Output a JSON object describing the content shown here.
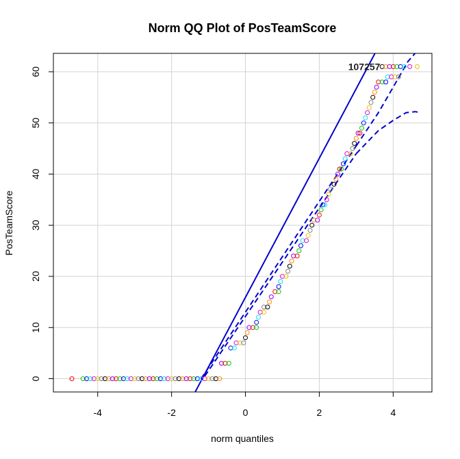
{
  "chart_data": {
    "type": "scatter",
    "title": "Norm QQ Plot of PosTeamScore",
    "xlabel": "norm quantiles",
    "ylabel": "PosTeamScore",
    "xlim": [
      -5.2,
      5.05
    ],
    "ylim": [
      -2.6,
      63.6
    ],
    "x_ticks": [
      -4,
      -2,
      0,
      2,
      4
    ],
    "y_ticks": [
      0,
      10,
      20,
      30,
      40,
      50,
      60
    ],
    "grid": true,
    "point_labels": [
      {
        "text": "107257",
        "x": 3.65,
        "y": 61
      }
    ],
    "reference_line": {
      "slope": 13.6,
      "intercept": 15.9
    },
    "confidence_band": {
      "upper": [
        [
          -0.6,
          7.8
        ],
        [
          0.0,
          15.9
        ],
        [
          1.0,
          29.5
        ],
        [
          2.0,
          43.0
        ],
        [
          3.0,
          56.8
        ],
        [
          3.5,
          64.0
        ],
        [
          4.0,
          71.0
        ],
        [
          4.65,
          81.0
        ]
      ],
      "lower": [
        [
          -0.6,
          7.6
        ],
        [
          0.0,
          15.6
        ],
        [
          1.0,
          29.1
        ],
        [
          2.0,
          42.5
        ],
        [
          3.0,
          55.5
        ],
        [
          3.5,
          61.5
        ],
        [
          4.0,
          64.0
        ],
        [
          4.3,
          65.0
        ],
        [
          4.7,
          66.0
        ]
      ]
    },
    "band_upper_visible": [
      [
        3.0,
        45.5
      ],
      [
        3.6,
        52.0
      ],
      [
        4.0,
        57.0
      ],
      [
        4.4,
        62.0
      ],
      [
        4.7,
        64.5
      ]
    ],
    "band_lower_visible": [
      [
        3.0,
        44.0
      ],
      [
        3.6,
        48.5
      ],
      [
        4.0,
        50.5
      ],
      [
        4.35,
        52.0
      ],
      [
        4.6,
        52.2
      ],
      [
        4.75,
        52.0
      ]
    ],
    "points": [
      {
        "x": -4.7,
        "y": 0
      },
      {
        "x": -4.4,
        "y": 0
      },
      {
        "x": -4.3,
        "y": 0
      },
      {
        "x": -4.2,
        "y": 0
      },
      {
        "x": -4.1,
        "y": 0
      },
      {
        "x": -4.0,
        "y": 0
      },
      {
        "x": -3.9,
        "y": 0
      },
      {
        "x": -3.8,
        "y": 0
      },
      {
        "x": -3.7,
        "y": 0
      },
      {
        "x": -3.6,
        "y": 0
      },
      {
        "x": -3.5,
        "y": 0
      },
      {
        "x": -3.4,
        "y": 0
      },
      {
        "x": -3.3,
        "y": 0
      },
      {
        "x": -3.2,
        "y": 0
      },
      {
        "x": -3.1,
        "y": 0
      },
      {
        "x": -3.0,
        "y": 0
      },
      {
        "x": -2.9,
        "y": 0
      },
      {
        "x": -2.8,
        "y": 0
      },
      {
        "x": -2.7,
        "y": 0
      },
      {
        "x": -2.6,
        "y": 0
      },
      {
        "x": -2.5,
        "y": 0
      },
      {
        "x": -2.4,
        "y": 0
      },
      {
        "x": -2.3,
        "y": 0
      },
      {
        "x": -2.2,
        "y": 0
      },
      {
        "x": -2.1,
        "y": 0
      },
      {
        "x": -2.0,
        "y": 0
      },
      {
        "x": -1.9,
        "y": 0
      },
      {
        "x": -1.8,
        "y": 0
      },
      {
        "x": -1.7,
        "y": 0
      },
      {
        "x": -1.6,
        "y": 0
      },
      {
        "x": -1.5,
        "y": 0
      },
      {
        "x": -1.4,
        "y": 0
      },
      {
        "x": -1.3,
        "y": 0
      },
      {
        "x": -1.2,
        "y": 0
      },
      {
        "x": -1.1,
        "y": 0
      },
      {
        "x": -1.0,
        "y": 0
      },
      {
        "x": -0.9,
        "y": 0
      },
      {
        "x": -0.8,
        "y": 0
      },
      {
        "x": -0.7,
        "y": 0
      },
      {
        "x": -0.65,
        "y": 3
      },
      {
        "x": -0.55,
        "y": 3
      },
      {
        "x": -0.45,
        "y": 3
      },
      {
        "x": -0.4,
        "y": 6
      },
      {
        "x": -0.3,
        "y": 6
      },
      {
        "x": -0.25,
        "y": 7
      },
      {
        "x": -0.15,
        "y": 7
      },
      {
        "x": -0.05,
        "y": 7
      },
      {
        "x": 0.0,
        "y": 8
      },
      {
        "x": 0.05,
        "y": 9
      },
      {
        "x": 0.1,
        "y": 10
      },
      {
        "x": 0.2,
        "y": 10
      },
      {
        "x": 0.3,
        "y": 10
      },
      {
        "x": 0.3,
        "y": 11
      },
      {
        "x": 0.35,
        "y": 12
      },
      {
        "x": 0.4,
        "y": 13
      },
      {
        "x": 0.5,
        "y": 13
      },
      {
        "x": 0.5,
        "y": 14
      },
      {
        "x": 0.6,
        "y": 14
      },
      {
        "x": 0.65,
        "y": 15
      },
      {
        "x": 0.7,
        "y": 16
      },
      {
        "x": 0.8,
        "y": 17
      },
      {
        "x": 0.9,
        "y": 17
      },
      {
        "x": 0.9,
        "y": 18
      },
      {
        "x": 0.95,
        "y": 19
      },
      {
        "x": 1.0,
        "y": 20
      },
      {
        "x": 1.1,
        "y": 20
      },
      {
        "x": 1.15,
        "y": 21
      },
      {
        "x": 1.2,
        "y": 22
      },
      {
        "x": 1.25,
        "y": 23
      },
      {
        "x": 1.3,
        "y": 24
      },
      {
        "x": 1.4,
        "y": 24
      },
      {
        "x": 1.45,
        "y": 25
      },
      {
        "x": 1.5,
        "y": 26
      },
      {
        "x": 1.55,
        "y": 27
      },
      {
        "x": 1.65,
        "y": 27
      },
      {
        "x": 1.7,
        "y": 28
      },
      {
        "x": 1.75,
        "y": 29
      },
      {
        "x": 1.8,
        "y": 30
      },
      {
        "x": 1.85,
        "y": 31
      },
      {
        "x": 1.95,
        "y": 31
      },
      {
        "x": 2.0,
        "y": 32
      },
      {
        "x": 2.05,
        "y": 33
      },
      {
        "x": 2.1,
        "y": 34
      },
      {
        "x": 2.15,
        "y": 34
      },
      {
        "x": 2.2,
        "y": 35
      },
      {
        "x": 2.25,
        "y": 36
      },
      {
        "x": 2.3,
        "y": 37
      },
      {
        "x": 2.4,
        "y": 38
      },
      {
        "x": 2.45,
        "y": 39
      },
      {
        "x": 2.5,
        "y": 40
      },
      {
        "x": 2.55,
        "y": 41
      },
      {
        "x": 2.6,
        "y": 41
      },
      {
        "x": 2.65,
        "y": 42
      },
      {
        "x": 2.7,
        "y": 43
      },
      {
        "x": 2.75,
        "y": 44
      },
      {
        "x": 2.85,
        "y": 44
      },
      {
        "x": 2.9,
        "y": 45
      },
      {
        "x": 2.95,
        "y": 46
      },
      {
        "x": 3.0,
        "y": 47
      },
      {
        "x": 3.05,
        "y": 48
      },
      {
        "x": 3.1,
        "y": 48
      },
      {
        "x": 3.15,
        "y": 49
      },
      {
        "x": 3.2,
        "y": 50
      },
      {
        "x": 3.25,
        "y": 51
      },
      {
        "x": 3.3,
        "y": 52
      },
      {
        "x": 3.35,
        "y": 53
      },
      {
        "x": 3.4,
        "y": 54
      },
      {
        "x": 3.45,
        "y": 55
      },
      {
        "x": 3.5,
        "y": 56
      },
      {
        "x": 3.55,
        "y": 57
      },
      {
        "x": 3.6,
        "y": 58
      },
      {
        "x": 3.7,
        "y": 58
      },
      {
        "x": 3.8,
        "y": 58
      },
      {
        "x": 3.85,
        "y": 59
      },
      {
        "x": 3.95,
        "y": 59
      },
      {
        "x": 4.05,
        "y": 59
      },
      {
        "x": 4.15,
        "y": 59
      },
      {
        "x": 3.7,
        "y": 61
      },
      {
        "x": 3.8,
        "y": 61
      },
      {
        "x": 3.9,
        "y": 61
      },
      {
        "x": 4.0,
        "y": 61
      },
      {
        "x": 4.1,
        "y": 61
      },
      {
        "x": 4.2,
        "y": 61
      },
      {
        "x": 4.3,
        "y": 61
      },
      {
        "x": 4.45,
        "y": 61
      },
      {
        "x": 4.65,
        "y": 61
      }
    ]
  },
  "colors": {
    "grid": "#d3d3d3",
    "reference_line": "#0000cc",
    "band": "#0000cc",
    "axes": "#000000",
    "point_palette": [
      "#ff0000",
      "#00cc00",
      "#0000ff",
      "#00e5e5",
      "#e500e5",
      "#e5c100",
      "#808080",
      "#000000",
      "#ff8800",
      "#8800ff"
    ]
  }
}
